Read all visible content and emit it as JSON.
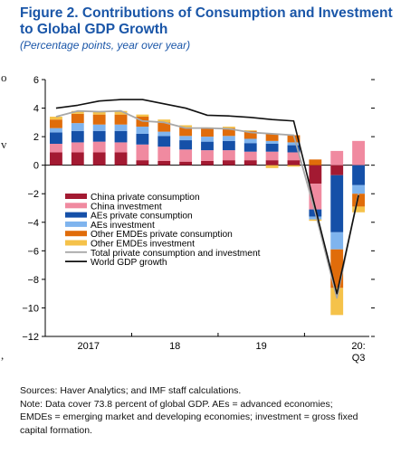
{
  "figure": {
    "title": "Figure 2. Contributions of Consumption and Investment to Global GDP Growth",
    "subtitle": "(Percentage points, year over year)"
  },
  "edge_fragments": [
    "o",
    "v",
    ","
  ],
  "chart_data": {
    "type": "bar",
    "stacked": true,
    "title": "Figure 2. Contributions of Consumption and Investment to Global GDP Growth",
    "subtitle": "(Percentage points, year over year)",
    "ylim": [
      -12,
      6
    ],
    "yticks": [
      -12,
      -10,
      -8,
      -6,
      -4,
      -2,
      0,
      2,
      4,
      6
    ],
    "ytick_labels": [
      "−12",
      "−10",
      "−8",
      "−6",
      "−4",
      "−2",
      "0",
      "2",
      "4",
      "6"
    ],
    "grid": false,
    "legend_position": "lower-left",
    "categories": [
      "2017Q1",
      "2017Q2",
      "2017Q3",
      "2017Q4",
      "2018Q1",
      "2018Q2",
      "2018Q3",
      "2018Q4",
      "2019Q1",
      "2019Q2",
      "2019Q3",
      "2019Q4",
      "2020Q1",
      "2020Q2",
      "2020Q3"
    ],
    "xtick_labels": [
      {
        "label": "2017",
        "at": 1.5
      },
      {
        "label": "18",
        "at": 5.5
      },
      {
        "label": "19",
        "at": 9.5
      },
      {
        "label": "20:",
        "sub": "Q3",
        "at": 14
      }
    ],
    "colors": {
      "china_consumption": "#a31a32",
      "china_investment": "#f08aa0",
      "aes_consumption": "#1550a8",
      "aes_investment": "#7fb4ee",
      "other_consumption": "#e06c0a",
      "other_investment": "#f5c24a",
      "total_line": "#a8a8a8",
      "gdp_line": "#111111"
    },
    "series": [
      {
        "name": "China private consumption",
        "key": "china_consumption",
        "values": [
          0.9,
          0.9,
          0.9,
          0.9,
          0.35,
          0.3,
          0.25,
          0.3,
          0.35,
          0.35,
          0.35,
          0.35,
          -1.3,
          -0.7,
          0.0
        ]
      },
      {
        "name": "China investment",
        "key": "china_investment",
        "values": [
          0.6,
          0.7,
          0.75,
          0.7,
          1.1,
          1.0,
          0.85,
          0.75,
          0.7,
          0.6,
          0.6,
          0.55,
          -1.8,
          1.0,
          1.7
        ]
      },
      {
        "name": "AEs private consumption",
        "key": "aes_consumption",
        "values": [
          0.8,
          0.8,
          0.75,
          0.8,
          0.75,
          0.75,
          0.65,
          0.6,
          0.65,
          0.6,
          0.55,
          0.5,
          -0.5,
          -4.0,
          -1.4
        ]
      },
      {
        "name": "AEs investment",
        "key": "aes_investment",
        "values": [
          0.3,
          0.55,
          0.45,
          0.45,
          0.5,
          0.3,
          0.3,
          0.35,
          0.35,
          0.3,
          0.2,
          0.2,
          -0.2,
          -1.2,
          -0.6
        ]
      },
      {
        "name": "Other EMDEs private consumption",
        "key": "other_consumption",
        "values": [
          0.6,
          0.65,
          0.7,
          0.7,
          0.7,
          0.65,
          0.6,
          0.55,
          0.55,
          0.55,
          0.5,
          0.5,
          0.4,
          -2.7,
          -0.9
        ]
      },
      {
        "name": "Other EMDEs investment",
        "key": "other_investment",
        "values": [
          0.2,
          0.2,
          0.2,
          0.25,
          0.15,
          0.2,
          0.15,
          0.1,
          0.1,
          0.05,
          -0.2,
          -0.1,
          -0.1,
          -1.9,
          -0.4
        ]
      }
    ],
    "lines": [
      {
        "name": "Total private consumption and investment",
        "key": "total_line",
        "values": [
          3.4,
          3.8,
          3.75,
          3.8,
          3.1,
          3.0,
          2.6,
          2.6,
          2.55,
          2.3,
          2.2,
          2.1,
          -3.3,
          -9.3,
          -2.0
        ]
      },
      {
        "name": "World GDP growth",
        "key": "gdp_line",
        "values": [
          4.0,
          4.2,
          4.5,
          4.6,
          4.6,
          4.3,
          4.0,
          3.5,
          3.45,
          3.35,
          3.2,
          3.1,
          -3.0,
          -9.0,
          -2.1
        ]
      }
    ]
  },
  "notes": {
    "sources": "Sources: Haver Analytics; and IMF staff calculations.",
    "note_line1": "Note: Data cover 73.8 percent of global GDP. AEs = advanced economies;",
    "note_line2": "EMDEs = emerging market and developing economies; investment = gross fixed",
    "note_line3": "capital formation."
  }
}
